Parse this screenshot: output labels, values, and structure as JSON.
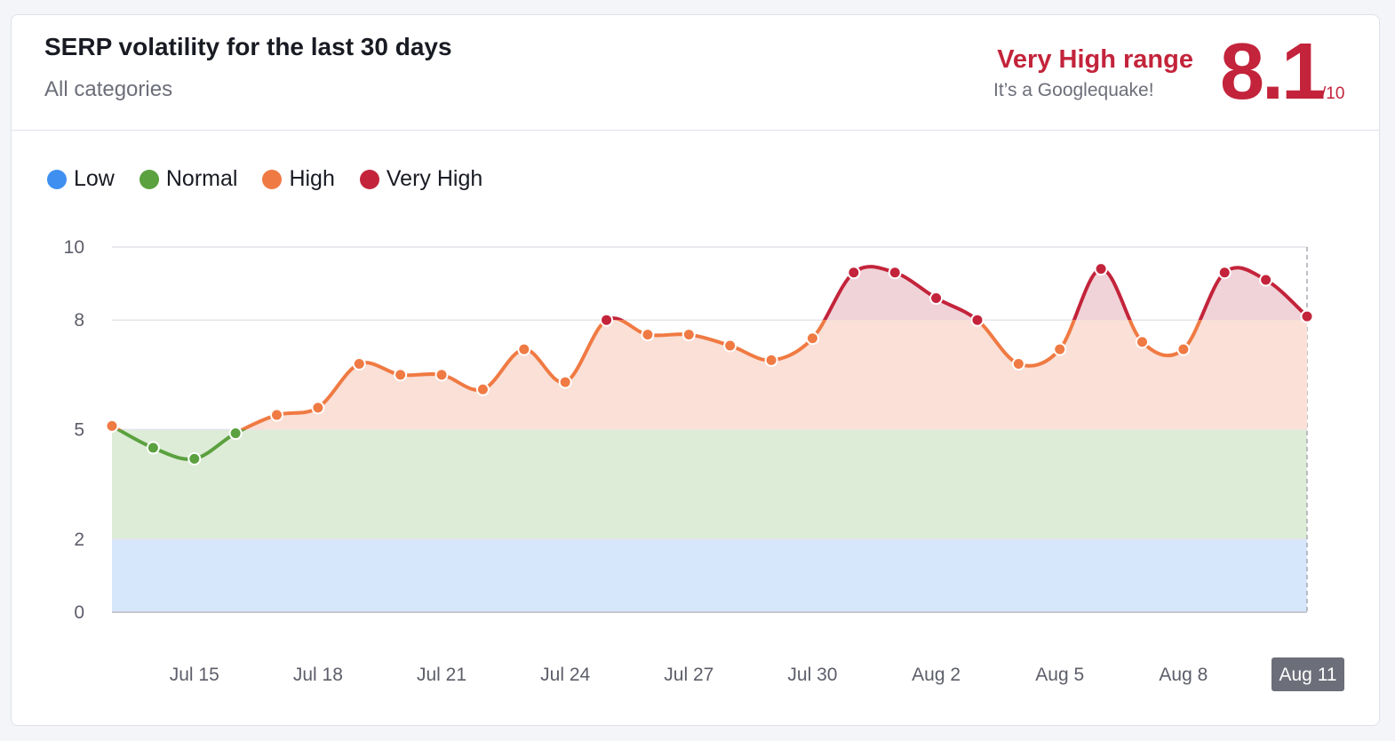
{
  "header": {
    "title": "SERP volatility for the last 30 days",
    "subtitle": "All categories",
    "range_label": "Very High range",
    "range_sub": "It’s a Googlequake!",
    "score": "8.1",
    "score_max": "/10"
  },
  "colors": {
    "low": "#3f8ff0",
    "normal": "#5ba13f",
    "high": "#f07a43",
    "very_high": "#c3243b",
    "band_low": "#d6e6fb",
    "band_normal": "#ddecd7",
    "band_high": "#fae0d7",
    "band_very_high": "#f0d3d9"
  },
  "legend": [
    {
      "label": "Low",
      "color": "#3f8ff0"
    },
    {
      "label": "Normal",
      "color": "#5ba13f"
    },
    {
      "label": "High",
      "color": "#f07a43"
    },
    {
      "label": "Very High",
      "color": "#c3243b"
    }
  ],
  "chart_data": {
    "type": "line",
    "title": "SERP volatility for the last 30 days",
    "xlabel": "",
    "ylabel": "",
    "ylim": [
      0,
      10
    ],
    "yticks": [
      0,
      2,
      5,
      8,
      10
    ],
    "x_tick_labels": [
      "Jul 15",
      "Jul 18",
      "Jul 21",
      "Jul 24",
      "Jul 27",
      "Jul 30",
      "Aug 2",
      "Aug 5",
      "Aug 8",
      "Aug 11"
    ],
    "highlighted_x_label": "Aug 11",
    "bands": [
      {
        "name": "Low",
        "from": 0,
        "to": 2
      },
      {
        "name": "Normal",
        "from": 2,
        "to": 5
      },
      {
        "name": "High",
        "from": 5,
        "to": 8
      },
      {
        "name": "Very High",
        "from": 8,
        "to": 10
      }
    ],
    "x": [
      "Jul 13",
      "Jul 14",
      "Jul 15",
      "Jul 16",
      "Jul 17",
      "Jul 18",
      "Jul 19",
      "Jul 20",
      "Jul 21",
      "Jul 22",
      "Jul 23",
      "Jul 24",
      "Jul 25",
      "Jul 26",
      "Jul 27",
      "Jul 28",
      "Jul 29",
      "Jul 30",
      "Jul 31",
      "Aug 1",
      "Aug 2",
      "Aug 3",
      "Aug 4",
      "Aug 5",
      "Aug 6",
      "Aug 7",
      "Aug 8",
      "Aug 9",
      "Aug 10",
      "Aug 11"
    ],
    "series": [
      {
        "values": [
          5.1,
          4.5,
          4.2,
          4.9,
          5.4,
          5.6,
          6.8,
          6.5,
          6.5,
          6.1,
          7.2,
          6.3,
          8.0,
          7.6,
          7.6,
          7.3,
          6.9,
          7.5,
          9.3,
          9.3,
          8.6,
          8.0,
          6.8,
          7.2,
          9.4,
          7.4,
          7.2,
          9.3,
          9.1,
          8.1
        ]
      }
    ],
    "grid": true,
    "legend_position": "top-left"
  }
}
